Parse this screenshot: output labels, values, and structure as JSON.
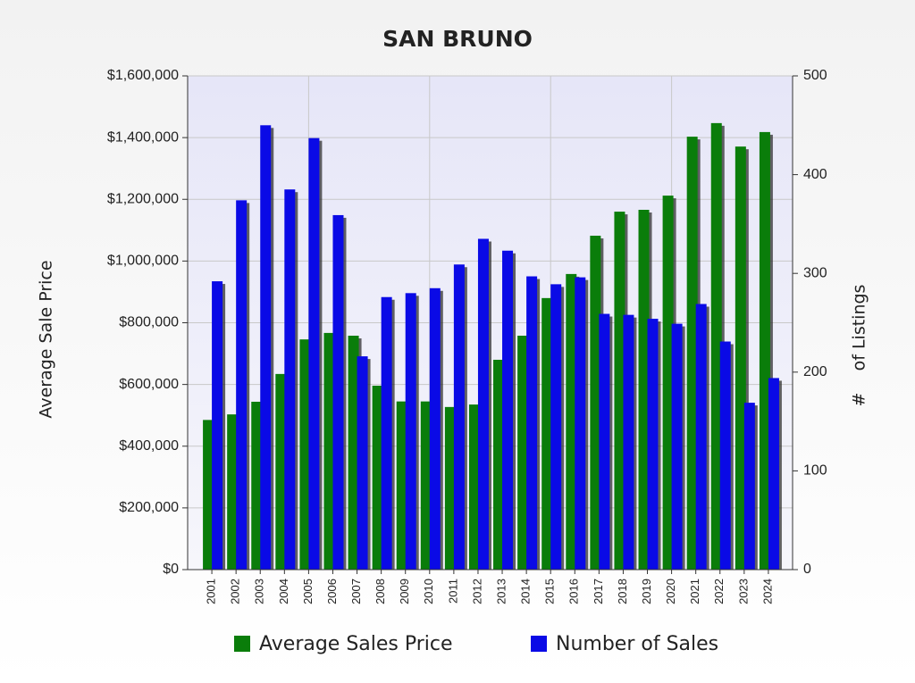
{
  "chart_data": {
    "type": "bar",
    "title": "SAN BRUNO",
    "categories": [
      "2001",
      "2002",
      "2003",
      "2004",
      "2005",
      "2006",
      "2007",
      "2008",
      "2009",
      "2010",
      "2011",
      "2012",
      "2013",
      "2014",
      "2015",
      "2016",
      "2017",
      "2018",
      "2019",
      "2020",
      "2021",
      "2022",
      "2023",
      "2024"
    ],
    "series": [
      {
        "name": "Average Sales Price",
        "color": "#0a7d0a",
        "values": [
          485000,
          503000,
          544000,
          634000,
          746000,
          767000,
          758000,
          596000,
          545000,
          545000,
          527000,
          535000,
          680000,
          758000,
          880000,
          958000,
          1082000,
          1160000,
          1166000,
          1212000,
          1403000,
          1447000,
          1371000,
          1418000
        ]
      },
      {
        "name": "Number of Sales",
        "color": "#0a0ae6",
        "axis": "y2",
        "values": [
          292,
          374,
          450,
          385,
          437,
          359,
          216,
          276,
          280,
          285,
          309,
          335,
          323,
          297,
          289,
          296,
          259,
          258,
          254,
          249,
          269,
          231,
          169,
          194
        ]
      }
    ],
    "y_label": "Average Sale Price",
    "y2_label": "#    of Listings",
    "ylim": [
      0,
      1600000
    ],
    "yticks": [
      {
        "value": 0,
        "label": "$0"
      },
      {
        "value": 200000,
        "label": "$200,000"
      },
      {
        "value": 400000,
        "label": "$400,000"
      },
      {
        "value": 600000,
        "label": "$600,000"
      },
      {
        "value": 800000,
        "label": "$800,000"
      },
      {
        "value": 1000000,
        "label": "$1,000,000"
      },
      {
        "value": 1200000,
        "label": "$1,200,000"
      },
      {
        "value": 1400000,
        "label": "$1,400,000"
      },
      {
        "value": 1600000,
        "label": "$1,600,000"
      }
    ],
    "y2lim": [
      0,
      500
    ],
    "y2ticks": [
      0,
      100,
      200,
      300,
      400,
      500
    ],
    "grid": true
  }
}
